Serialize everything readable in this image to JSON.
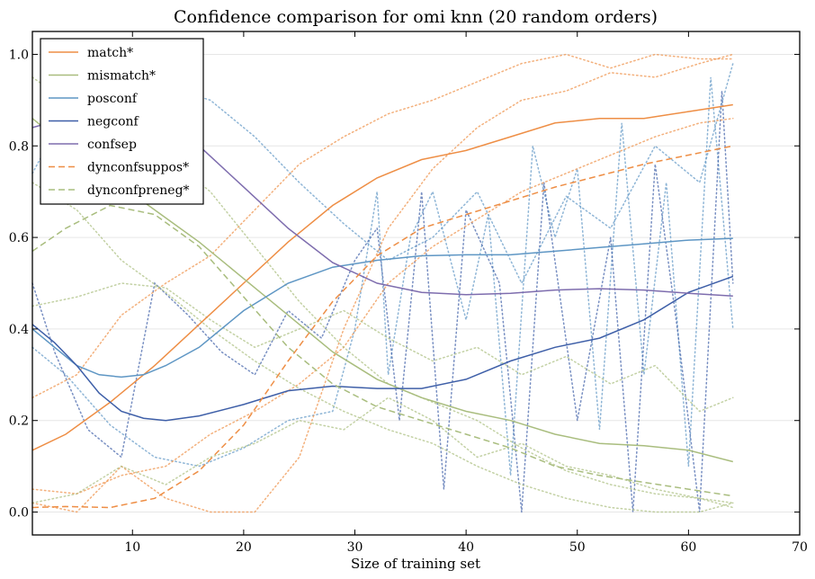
{
  "chart_data": {
    "type": "line",
    "title": "Confidence comparison for omi knn (20 random orders)",
    "xlabel": "Size of training set",
    "ylabel": "",
    "xlim": [
      1,
      70
    ],
    "ylim": [
      -0.05,
      1.05
    ],
    "x_ticks": [
      10,
      20,
      30,
      40,
      50,
      60,
      70
    ],
    "y_ticks": [
      0.0,
      0.2,
      0.4,
      0.6,
      0.8,
      1.0
    ],
    "x_tick_labels": [
      "10",
      "20",
      "30",
      "40",
      "50",
      "60",
      "70"
    ],
    "y_tick_labels": [
      "0.0",
      "0.2",
      "0.4",
      "0.6",
      "0.8",
      "1.0"
    ],
    "grid": "horizontal",
    "legend_position": "top-left",
    "series": [
      {
        "name": "match*",
        "style": "solid",
        "color": "#EE8E45",
        "x": [
          1,
          4,
          8,
          12,
          16,
          20,
          24,
          28,
          32,
          36,
          40,
          44,
          48,
          52,
          56,
          60,
          64
        ],
        "y": [
          0.135,
          0.17,
          0.24,
          0.32,
          0.41,
          0.5,
          0.59,
          0.67,
          0.73,
          0.77,
          0.79,
          0.82,
          0.85,
          0.86,
          0.86,
          0.875,
          0.89
        ]
      },
      {
        "name": "mismatch*",
        "style": "solid",
        "color": "#A9BD7E",
        "x": [
          1,
          4,
          8,
          12,
          16,
          20,
          24,
          28,
          32,
          36,
          40,
          44,
          48,
          52,
          56,
          60,
          64
        ],
        "y": [
          0.86,
          0.8,
          0.73,
          0.66,
          0.59,
          0.51,
          0.43,
          0.35,
          0.29,
          0.25,
          0.22,
          0.2,
          0.17,
          0.15,
          0.145,
          0.135,
          0.11
        ]
      },
      {
        "name": "posconf",
        "style": "solid",
        "color": "#5E96C4",
        "x": [
          1,
          3,
          5,
          7,
          9,
          11,
          13,
          16,
          20,
          24,
          28,
          32,
          36,
          40,
          44,
          48,
          52,
          56,
          60,
          64
        ],
        "y": [
          0.4,
          0.36,
          0.32,
          0.3,
          0.295,
          0.3,
          0.32,
          0.36,
          0.44,
          0.5,
          0.535,
          0.55,
          0.56,
          0.562,
          0.562,
          0.57,
          0.578,
          0.586,
          0.594,
          0.598
        ]
      },
      {
        "name": "negconf",
        "style": "solid",
        "color": "#3E5FA8",
        "x": [
          1,
          3,
          5,
          7,
          9,
          11,
          13,
          16,
          20,
          24,
          28,
          32,
          36,
          40,
          44,
          48,
          52,
          56,
          60,
          64
        ],
        "y": [
          0.41,
          0.37,
          0.32,
          0.26,
          0.22,
          0.205,
          0.2,
          0.21,
          0.235,
          0.265,
          0.275,
          0.27,
          0.27,
          0.29,
          0.33,
          0.36,
          0.38,
          0.42,
          0.48,
          0.515
        ]
      },
      {
        "name": "confsep",
        "style": "solid",
        "color": "#7E6DAE",
        "x": [
          1,
          4,
          8,
          12,
          16,
          20,
          24,
          28,
          32,
          36,
          40,
          44,
          48,
          52,
          56,
          60,
          64
        ],
        "y": [
          0.84,
          0.86,
          0.87,
          0.85,
          0.8,
          0.71,
          0.62,
          0.545,
          0.5,
          0.48,
          0.475,
          0.478,
          0.485,
          0.488,
          0.485,
          0.478,
          0.472
        ]
      },
      {
        "name": "dynconfsuppos*",
        "style": "dashed",
        "color": "#EE8E45",
        "x": [
          1,
          4,
          8,
          12,
          16,
          20,
          24,
          28,
          32,
          36,
          40,
          44,
          48,
          52,
          56,
          60,
          64
        ],
        "y": [
          0.01,
          0.012,
          0.01,
          0.03,
          0.09,
          0.19,
          0.33,
          0.46,
          0.56,
          0.62,
          0.65,
          0.68,
          0.71,
          0.735,
          0.76,
          0.78,
          0.8
        ]
      },
      {
        "name": "dynconfpreneg*",
        "style": "dashed",
        "color": "#A9BD7E",
        "x": [
          1,
          4,
          8,
          12,
          16,
          20,
          24,
          28,
          32,
          36,
          40,
          44,
          48,
          52,
          56,
          60,
          64
        ],
        "y": [
          0.57,
          0.62,
          0.67,
          0.65,
          0.58,
          0.47,
          0.36,
          0.28,
          0.23,
          0.2,
          0.17,
          0.14,
          0.1,
          0.08,
          0.065,
          0.05,
          0.035
        ]
      }
    ],
    "background_traces": [
      {
        "style": "dotted",
        "color": "#5E96C4",
        "x": [
          1,
          4,
          8,
          12,
          16,
          20,
          24,
          28,
          30,
          32,
          33,
          35,
          37,
          40,
          42,
          44,
          46,
          48,
          50,
          52,
          54,
          56,
          58,
          60,
          62,
          64
        ],
        "y": [
          0.36,
          0.3,
          0.19,
          0.12,
          0.1,
          0.14,
          0.2,
          0.22,
          0.4,
          0.7,
          0.3,
          0.6,
          0.7,
          0.42,
          0.65,
          0.08,
          0.8,
          0.6,
          0.75,
          0.18,
          0.85,
          0.3,
          0.72,
          0.1,
          0.95,
          0.4
        ]
      },
      {
        "style": "dotted",
        "color": "#3E5FA8",
        "x": [
          1,
          3,
          6,
          9,
          12,
          15,
          18,
          21,
          24,
          27,
          30,
          32,
          34,
          36,
          38,
          40,
          43,
          45,
          47,
          50,
          53,
          55,
          57,
          59,
          61,
          63,
          64
        ],
        "y": [
          0.5,
          0.35,
          0.18,
          0.12,
          0.5,
          0.43,
          0.35,
          0.3,
          0.44,
          0.38,
          0.55,
          0.62,
          0.2,
          0.7,
          0.05,
          0.66,
          0.5,
          0.0,
          0.72,
          0.2,
          0.6,
          0.0,
          0.76,
          0.4,
          0.0,
          0.92,
          0.5
        ]
      },
      {
        "style": "dotted",
        "color": "#5E96C4",
        "x": [
          1,
          5,
          9,
          13,
          17,
          21,
          25,
          29,
          33,
          37,
          41,
          45,
          49,
          53,
          57,
          61,
          64
        ],
        "y": [
          0.74,
          0.92,
          0.95,
          0.93,
          0.9,
          0.82,
          0.72,
          0.63,
          0.55,
          0.6,
          0.7,
          0.5,
          0.69,
          0.62,
          0.8,
          0.72,
          0.98
        ]
      },
      {
        "style": "dotted",
        "color": "#EE8E45",
        "x": [
          1,
          5,
          9,
          13,
          17,
          21,
          25,
          29,
          33,
          37,
          41,
          45,
          49,
          53,
          57,
          61,
          64
        ],
        "y": [
          0.02,
          0.0,
          0.1,
          0.03,
          0.0,
          0.0,
          0.12,
          0.4,
          0.62,
          0.75,
          0.84,
          0.9,
          0.92,
          0.96,
          0.95,
          0.98,
          1.0
        ]
      },
      {
        "style": "dotted",
        "color": "#EE8E45",
        "x": [
          1,
          5,
          9,
          13,
          17,
          21,
          25,
          29,
          33,
          37,
          41,
          45,
          49,
          53,
          57,
          61,
          64
        ],
        "y": [
          0.25,
          0.3,
          0.43,
          0.5,
          0.56,
          0.66,
          0.76,
          0.82,
          0.87,
          0.9,
          0.94,
          0.98,
          1.0,
          0.97,
          1.0,
          0.99,
          0.99
        ]
      },
      {
        "style": "dotted",
        "color": "#EE8E45",
        "x": [
          1,
          5,
          9,
          13,
          17,
          21,
          25,
          29,
          33,
          37,
          41,
          45,
          49,
          53,
          57,
          61,
          64
        ],
        "y": [
          0.05,
          0.04,
          0.08,
          0.1,
          0.17,
          0.22,
          0.28,
          0.36,
          0.5,
          0.58,
          0.64,
          0.7,
          0.74,
          0.78,
          0.82,
          0.85,
          0.86
        ]
      },
      {
        "style": "dotted",
        "color": "#A9BD7E",
        "x": [
          1,
          5,
          9,
          13,
          17,
          21,
          25,
          29,
          33,
          37,
          41,
          45,
          49,
          53,
          57,
          61,
          64
        ],
        "y": [
          0.95,
          0.88,
          0.84,
          0.78,
          0.7,
          0.58,
          0.46,
          0.36,
          0.28,
          0.24,
          0.2,
          0.14,
          0.09,
          0.06,
          0.04,
          0.03,
          0.02
        ]
      },
      {
        "style": "dotted",
        "color": "#A9BD7E",
        "x": [
          1,
          5,
          9,
          13,
          17,
          21,
          25,
          29,
          33,
          37,
          41,
          45,
          49,
          53,
          57,
          61,
          64
        ],
        "y": [
          0.72,
          0.66,
          0.55,
          0.48,
          0.4,
          0.33,
          0.27,
          0.22,
          0.18,
          0.15,
          0.1,
          0.06,
          0.03,
          0.01,
          0.0,
          0.0,
          0.02
        ]
      },
      {
        "style": "dotted",
        "color": "#A9BD7E",
        "x": [
          1,
          5,
          9,
          13,
          17,
          21,
          25,
          29,
          33,
          37,
          41,
          45,
          49,
          53,
          57,
          61,
          64
        ],
        "y": [
          0.45,
          0.47,
          0.5,
          0.49,
          0.42,
          0.36,
          0.4,
          0.44,
          0.38,
          0.33,
          0.36,
          0.3,
          0.34,
          0.28,
          0.32,
          0.22,
          0.25
        ]
      },
      {
        "style": "dotted",
        "color": "#A9BD7E",
        "x": [
          1,
          5,
          9,
          13,
          17,
          21,
          25,
          29,
          33,
          37,
          41,
          45,
          49,
          53,
          57,
          61,
          64
        ],
        "y": [
          0.02,
          0.04,
          0.1,
          0.06,
          0.12,
          0.15,
          0.2,
          0.18,
          0.25,
          0.2,
          0.12,
          0.15,
          0.1,
          0.08,
          0.05,
          0.03,
          0.01
        ]
      }
    ]
  }
}
